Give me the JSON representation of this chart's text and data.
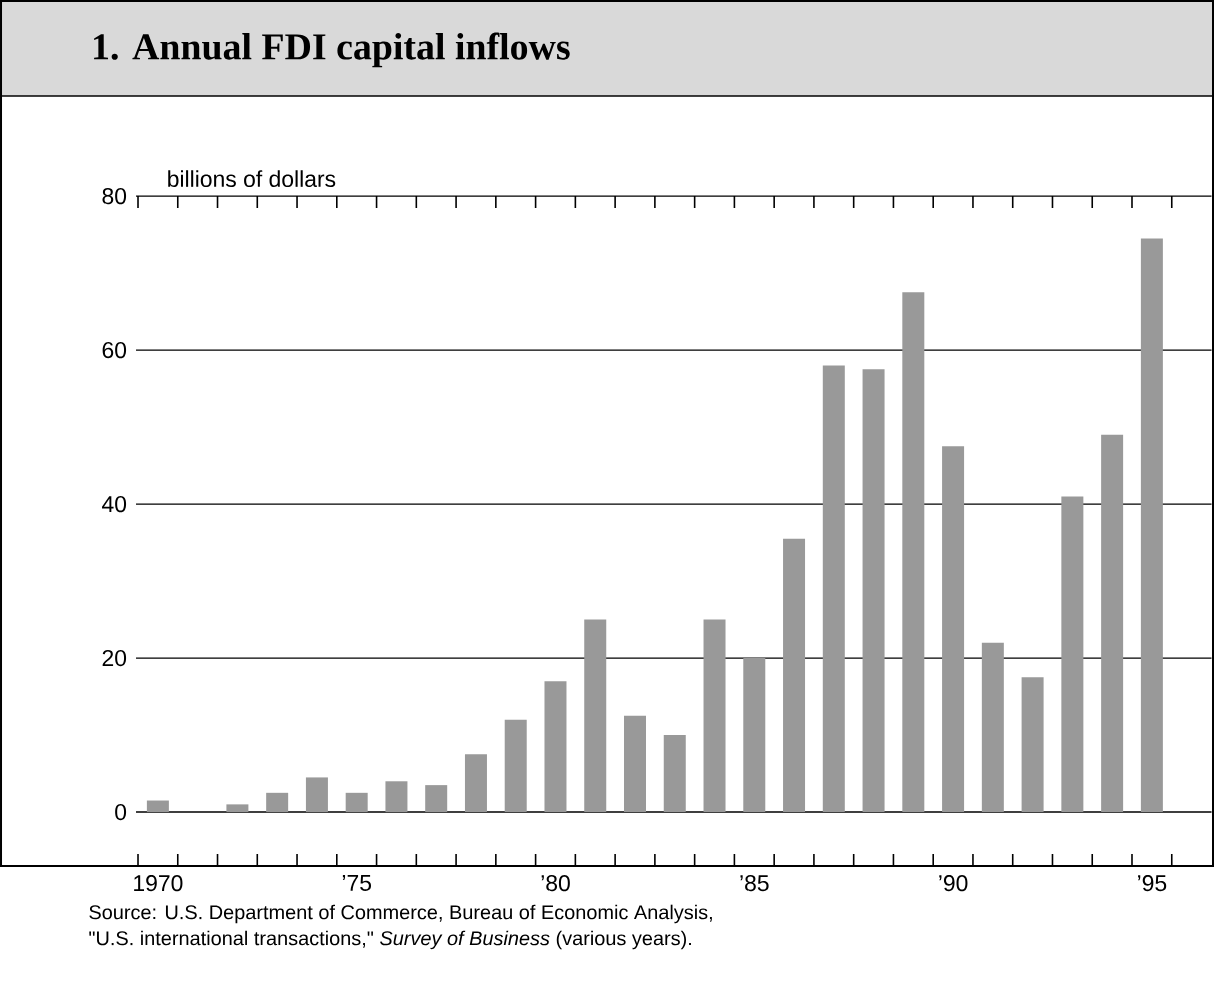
{
  "chart_data": {
    "type": "bar",
    "title": "1. Annual FDI capital inflows",
    "ylabel": "billions of dollars",
    "categories": [
      "1970",
      null,
      null,
      null,
      null,
      "’75",
      null,
      null,
      null,
      null,
      "’80",
      null,
      null,
      null,
      null,
      "’85",
      null,
      null,
      null,
      null,
      "’90",
      null,
      null,
      null,
      null,
      "’95"
    ],
    "values": [
      1.5,
      null,
      1,
      2.5,
      4.5,
      2.5,
      4,
      3.5,
      7.5,
      12,
      17,
      25,
      12.5,
      10,
      25,
      20,
      35.5,
      58,
      57.5,
      67.5,
      47.5,
      22,
      17.5,
      41,
      49,
      74.5
    ],
    "color": "#999999",
    "ylim": [
      -7,
      80
    ],
    "yticks": [
      0,
      20,
      40,
      60,
      80
    ],
    "grid": "y",
    "annotations": [
      "Source: U.S. Department of Commerce, Bureau of Economic Analysis,",
      "\"U.S. international transactions,\" *Survey of Business* (various years)."
    ]
  }
}
